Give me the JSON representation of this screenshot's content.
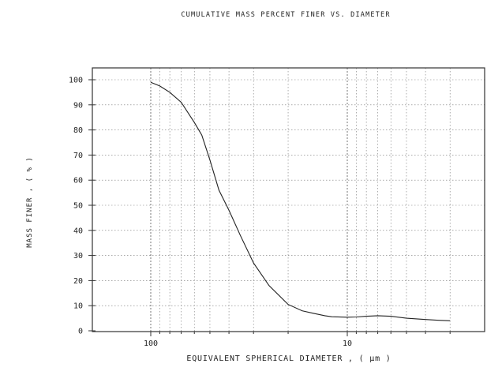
{
  "chart_data": {
    "type": "line",
    "title": "CUMULATIVE MASS PERCENT   FINER   VS.  DIAMETER",
    "xlabel": "EQUIVALENT SPHERICAL DIAMETER ,  ( μm )",
    "ylabel": "MASS   FINER   , ( % )",
    "x_scale": "log",
    "x_reversed": true,
    "xlim": [
      230,
      3
    ],
    "ylim": [
      0,
      100
    ],
    "x_tick_labels": [
      {
        "value": 100,
        "label": "100"
      },
      {
        "value": 10,
        "label": "10"
      }
    ],
    "y_ticks": [
      0,
      10,
      20,
      30,
      40,
      50,
      60,
      70,
      80,
      90,
      100
    ],
    "grid": true,
    "series": [
      {
        "x": [
          100,
          90,
          80,
          70,
          60,
          55,
          50,
          45,
          40,
          35,
          30,
          25,
          20,
          17,
          15,
          13,
          12,
          10,
          9,
          8,
          7,
          6,
          5,
          4,
          3.5,
          3
        ],
        "y": [
          99,
          97.5,
          95,
          91,
          83,
          78,
          68,
          56,
          48,
          38,
          27,
          18,
          10.5,
          8,
          7,
          6,
          5.6,
          5.4,
          5.5,
          5.8,
          6,
          5.8,
          5,
          4.5,
          4.2,
          4
        ]
      }
    ]
  }
}
